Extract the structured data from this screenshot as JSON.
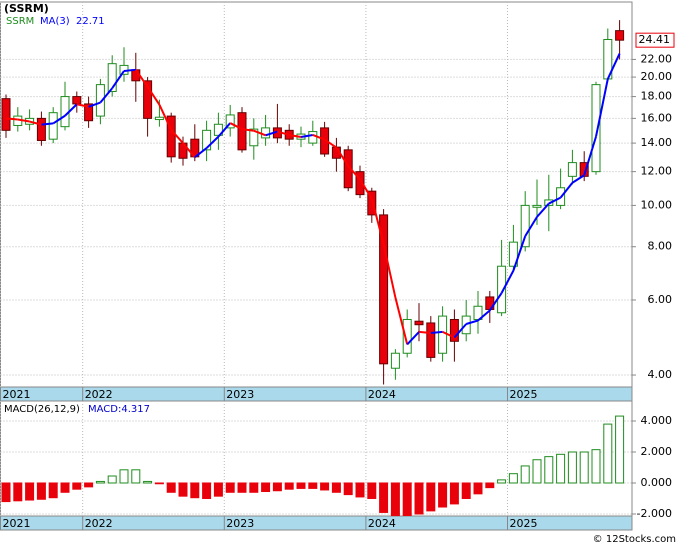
{
  "chart_data": [
    {
      "type": "candlestick",
      "title": "(SSRM)",
      "name": "SSRM",
      "log": true,
      "grid": true,
      "up_color": "#1e8c1e",
      "down_color": "#e8000b",
      "categories": [
        "2021",
        null,
        null,
        null,
        null,
        null,
        null,
        "2022",
        null,
        null,
        null,
        null,
        null,
        null,
        null,
        null,
        null,
        null,
        null,
        "2023",
        null,
        null,
        null,
        null,
        null,
        null,
        null,
        null,
        null,
        null,
        null,
        "2024",
        null,
        null,
        null,
        null,
        null,
        null,
        null,
        null,
        null,
        null,
        null,
        "2025",
        null,
        null,
        null,
        null,
        null,
        null,
        null,
        null,
        null
      ],
      "open": [
        17.8,
        15.4,
        15.5,
        16.0,
        14.3,
        15.3,
        18.0,
        17.3,
        16.2,
        18.5,
        20.3,
        20.8,
        19.6,
        15.9,
        16.2,
        14.0,
        14.3,
        13.5,
        14.6,
        15.2,
        16.5,
        13.8,
        14.4,
        15.2,
        15.0,
        14.3,
        14.0,
        15.2,
        13.7,
        13.5,
        12.0,
        10.8,
        9.5,
        4.15,
        4.5,
        5.35,
        5.3,
        4.5,
        5.4,
        5.0,
        5.4,
        6.1,
        5.6,
        7.2,
        8.0,
        9.9,
        10.0,
        10.0,
        11.7,
        12.6,
        12.0,
        19.8,
        25.7
      ],
      "high": [
        18.2,
        17.0,
        16.8,
        16.6,
        17.0,
        19.5,
        18.5,
        18.0,
        19.8,
        22.5,
        23.5,
        22.8,
        20.0,
        17.7,
        16.5,
        14.5,
        15.5,
        15.8,
        16.5,
        17.2,
        17.0,
        16.0,
        16.3,
        17.3,
        15.5,
        15.3,
        15.8,
        15.7,
        14.4,
        13.8,
        12.4,
        11.0,
        9.8,
        4.6,
        5.7,
        5.9,
        5.5,
        5.8,
        5.7,
        6.0,
        6.3,
        6.3,
        8.3,
        9.0,
        10.8,
        11.5,
        11.8,
        12.2,
        13.5,
        13.4,
        19.5,
        26.0,
        27.2
      ],
      "low": [
        14.4,
        14.9,
        15.0,
        13.8,
        14.0,
        15.0,
        16.5,
        15.2,
        15.5,
        18.0,
        19.5,
        17.5,
        14.5,
        15.3,
        12.6,
        12.4,
        12.7,
        12.7,
        13.5,
        14.5,
        13.3,
        12.8,
        13.8,
        14.0,
        13.8,
        13.7,
        13.8,
        13.0,
        12.0,
        10.8,
        10.4,
        9.1,
        3.8,
        3.9,
        4.4,
        4.8,
        4.3,
        4.3,
        4.3,
        4.8,
        5.0,
        5.3,
        5.5,
        7.0,
        7.8,
        9.0,
        8.7,
        9.8,
        11.2,
        11.4,
        11.8,
        19.5,
        22.0
      ],
      "close": [
        15.0,
        16.2,
        16.0,
        14.2,
        16.5,
        18.0,
        17.3,
        15.8,
        19.2,
        21.5,
        21.3,
        19.6,
        16.0,
        16.1,
        13.0,
        12.9,
        13.0,
        15.0,
        15.5,
        16.3,
        13.5,
        15.1,
        15.2,
        14.4,
        14.3,
        14.7,
        14.9,
        13.2,
        12.9,
        11.0,
        10.6,
        9.5,
        4.25,
        4.5,
        5.4,
        5.25,
        4.4,
        5.5,
        4.8,
        5.5,
        5.8,
        5.7,
        7.2,
        8.2,
        10.0,
        10.0,
        10.3,
        11.0,
        12.6,
        11.7,
        19.2,
        24.5,
        24.41
      ],
      "ma": {
        "name": "MA(3)",
        "up_color": "#0000ff",
        "down_color": "#ff0000",
        "values": [
          16.0,
          15.9,
          15.73,
          15.47,
          15.57,
          16.23,
          17.27,
          17.03,
          17.43,
          18.83,
          20.67,
          20.8,
          18.97,
          17.23,
          15.03,
          14.0,
          12.97,
          13.63,
          14.5,
          15.6,
          15.1,
          14.97,
          14.6,
          14.9,
          14.63,
          14.47,
          14.63,
          14.27,
          13.67,
          12.37,
          11.5,
          10.37,
          8.12,
          6.08,
          4.72,
          5.05,
          5.02,
          5.05,
          4.9,
          5.27,
          5.37,
          5.67,
          6.23,
          7.03,
          8.47,
          9.4,
          10.1,
          10.43,
          11.3,
          11.77,
          14.5,
          19.8,
          22.71
        ]
      },
      "ylim": [
        3.75,
        30
      ],
      "yticks": [
        {
          "value": 4,
          "label": "4.00"
        },
        {
          "value": 6,
          "label": "6.00"
        },
        {
          "value": 8,
          "label": "8.00"
        },
        {
          "value": 10,
          "label": "10.00"
        },
        {
          "value": 12,
          "label": "12.00"
        },
        {
          "value": 14,
          "label": "14.00"
        },
        {
          "value": 16,
          "label": "16.00"
        },
        {
          "value": 18,
          "label": "18.00"
        },
        {
          "value": 20,
          "label": "20.00"
        },
        {
          "value": 22,
          "label": "22.00"
        }
      ]
    },
    {
      "type": "bar",
      "title": "MACD(26,12,9)",
      "name": "MACD:",
      "grid": true,
      "up_color": "#1e8c1e",
      "down_color": "#e8000b",
      "categories": [
        "2021",
        null,
        null,
        null,
        null,
        null,
        null,
        "2022",
        null,
        null,
        null,
        null,
        null,
        null,
        null,
        null,
        null,
        null,
        null,
        "2023",
        null,
        null,
        null,
        null,
        null,
        null,
        null,
        null,
        null,
        null,
        null,
        "2024",
        null,
        null,
        null,
        null,
        null,
        null,
        null,
        null,
        null,
        null,
        null,
        "2025",
        null,
        null,
        null,
        null,
        null,
        null,
        null,
        null,
        null
      ],
      "values": [
        -1.2,
        -1.15,
        -1.1,
        -1.05,
        -0.95,
        -0.6,
        -0.4,
        -0.25,
        0.1,
        0.45,
        0.85,
        0.85,
        0.1,
        -0.05,
        -0.6,
        -0.85,
        -0.95,
        -1.0,
        -0.85,
        -0.6,
        -0.6,
        -0.6,
        -0.55,
        -0.5,
        -0.4,
        -0.35,
        -0.35,
        -0.45,
        -0.6,
        -0.75,
        -0.9,
        -1.0,
        -1.9,
        -2.1,
        -2.1,
        -2.0,
        -1.8,
        -1.55,
        -1.35,
        -1.0,
        -0.7,
        -0.3,
        0.2,
        0.6,
        1.1,
        1.5,
        1.7,
        1.85,
        2.0,
        2.0,
        2.15,
        3.8,
        4.317
      ],
      "ylim": [
        -2.13,
        5.29
      ],
      "yticks": [
        {
          "value": -2,
          "label": "-2.000"
        },
        {
          "value": 0,
          "label": "0.000"
        },
        {
          "value": 2,
          "label": "2.000"
        },
        {
          "value": 4,
          "label": "4.000"
        }
      ]
    }
  ],
  "footer": "© 12Stocks.com"
}
